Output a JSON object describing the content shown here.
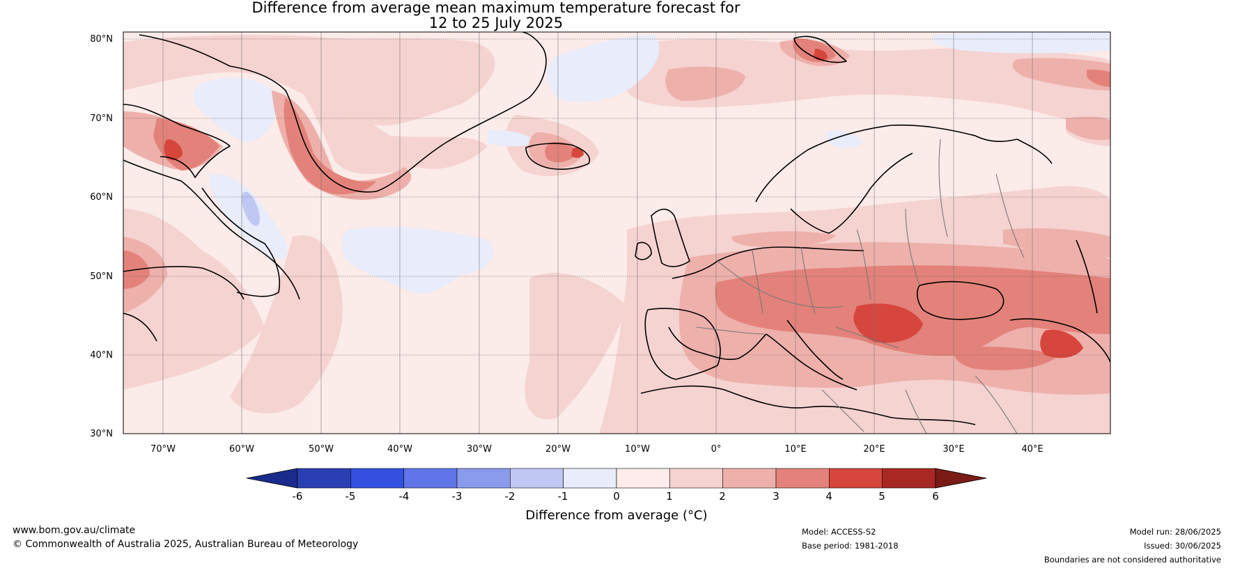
{
  "title_line1": "Difference from average mean maximum temperature forecast for",
  "title_line2": "12 to 25 July 2025",
  "lat_labels": [
    "80°N",
    "70°N",
    "60°N",
    "50°N",
    "40°N",
    "30°N"
  ],
  "lon_labels": [
    "70°W",
    "60°W",
    "50°W",
    "40°W",
    "30°W",
    "20°W",
    "10°W",
    "0°",
    "10°E",
    "20°E",
    "30°E",
    "40°E"
  ],
  "colorbar": {
    "ticks": [
      "-6",
      "-5",
      "-4",
      "-3",
      "-2",
      "-1",
      "0",
      "1",
      "2",
      "3",
      "4",
      "5",
      "6"
    ],
    "label": "Difference from average (°C)",
    "colors": [
      "#1a2b8c",
      "#2b3fb4",
      "#3350e0",
      "#6075e8",
      "#8b9bec",
      "#bfc7f3",
      "#e8ecfb",
      "#fdeceb",
      "#f5d3d1",
      "#eeb0ab",
      "#e3827a",
      "#d6463c",
      "#a82823",
      "#7a1b17"
    ]
  },
  "footer": {
    "website": "www.bom.gov.au/climate",
    "copyright": "© Commonwealth of Australia 2025, Australian Bureau of Meteorology",
    "model": "Model: ACCESS-S2",
    "base_period": "Base period: 1981-2018",
    "model_run": "Model run: 28/06/2025",
    "issued": "Issued: 30/06/2025",
    "disclaimer": "Boundaries are not considered authoritative"
  }
}
